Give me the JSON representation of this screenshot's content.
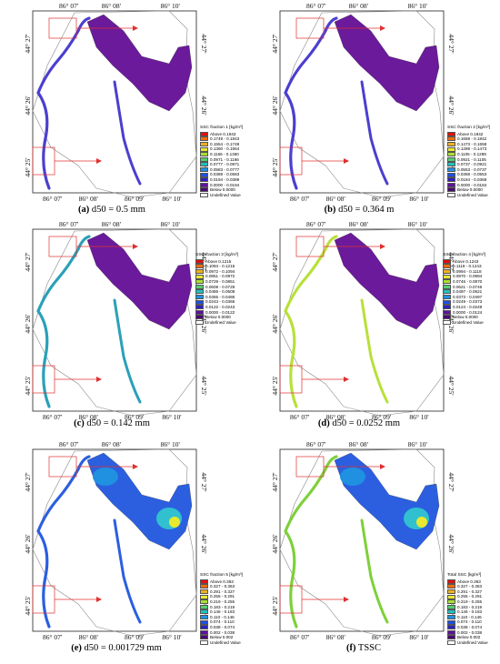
{
  "ticks": {
    "top": [
      "86° 07'",
      "86° 08'",
      "86° 10'"
    ],
    "bottom": [
      "86° 07'",
      "86° 08'",
      "86° 09'",
      "86° 10'"
    ],
    "left": [
      "44° 27'",
      "44° 26'",
      "44° 25'"
    ],
    "right": [
      "44° 27'",
      "44° 26'",
      "44° 25'"
    ]
  },
  "panels": [
    {
      "id": "a",
      "caption_label": "(a)",
      "caption_text": " d50 = 0.5 mm",
      "legend_title": "SSC fraction 1 [kg/m³]",
      "legend_rows": [
        "Above 0.1943",
        "0.1749 - 0.1943",
        "0.1554 - 0.1749",
        "0.1360 - 0.1554",
        "0.1166 - 0.1360",
        "0.0971 - 0.1166",
        "0.0777 - 0.0971",
        "0.0583 - 0.0777",
        "0.0389 - 0.0583",
        "0.0194 - 0.0389",
        "0.0000 - 0.0194",
        "Below 0.0000",
        "Undefined Value"
      ],
      "lake_color": "#6a1a9a",
      "river_color": "#4b3fcf"
    },
    {
      "id": "b",
      "caption_label": "(b)",
      "caption_text": " d50 = 0.364 m",
      "legend_title": "SSC fraction 2 [kg/m³]",
      "legend_rows": [
        "Above 0.1842",
        "0.1658 - 0.1842",
        "0.1473 - 0.1658",
        "0.1289 - 0.1473",
        "0.1105 - 0.1289",
        "0.0921 - 0.1105",
        "0.0737 - 0.0921",
        "0.0553 - 0.0737",
        "0.0368 - 0.0553",
        "0.0184 - 0.0368",
        "0.0000 - 0.0184",
        "Below 0.0000",
        "Undefined Value"
      ],
      "lake_color": "#6a1a9a",
      "river_color": "#4b3fcf"
    },
    {
      "id": "c",
      "caption_label": "(c)",
      "caption_text": " d50 = 0.142 mm",
      "legend_title": "SSC fraction 3 [kg/m³]",
      "legend_rows": [
        "Above 0.1215",
        "0.1094 - 0.1215",
        "0.0972 - 0.1094",
        "0.0851 - 0.0972",
        "0.0729 - 0.0851",
        "0.0608 - 0.0729",
        "0.0486 - 0.0608",
        "0.0365 - 0.0486",
        "0.0243 - 0.0365",
        "0.0122 - 0.0243",
        "0.0000 - 0.0122",
        "Below 0.0000",
        "Undefined Value"
      ],
      "lake_color": "#6a1a9a",
      "river_color": "#2aa0b8"
    },
    {
      "id": "d",
      "caption_label": "(d)",
      "caption_text": " d50 = 0.0252 mm",
      "legend_title": "SSC fraction 4 [kg/m³]",
      "legend_rows": [
        "Above 0.1243",
        "0.1118 - 0.1243",
        "0.0994 - 0.1118",
        "0.0870 - 0.0994",
        "0.0746 - 0.0870",
        "0.0621 - 0.0746",
        "0.0497 - 0.0621",
        "0.0373 - 0.0497",
        "0.0249 - 0.0373",
        "0.0124 - 0.0249",
        "0.0000 - 0.0124",
        "Below 0.0000",
        "Undefined Value"
      ],
      "lake_color": "#6a1a9a",
      "river_color": "#b8e03a"
    },
    {
      "id": "e",
      "caption_label": "(e)",
      "caption_text": " d50 = 0.001729 mm",
      "legend_title": "SSC fraction 5 [kg/m³]",
      "legend_rows": [
        "Above 0.363",
        "0.327 - 0.363",
        "0.291 - 0.327",
        "0.255 - 0.291",
        "0.219 - 0.255",
        "0.183 - 0.219",
        "0.146 - 0.183",
        "0.110 - 0.146",
        "0.074 - 0.110",
        "0.038 - 0.074",
        "0.002 - 0.038",
        "Below 0.002",
        "Undefined Value"
      ],
      "lake_color": "#2b5fe0",
      "river_color": "#2b5fe0"
    },
    {
      "id": "f",
      "caption_label": "(f)",
      "caption_text": " TSSC",
      "legend_title": "Total SSC [kg/m³]",
      "legend_rows": [
        "Above 0.363",
        "0.327 - 0.363",
        "0.291 - 0.327",
        "0.255 - 0.291",
        "0.219 - 0.255",
        "0.183 - 0.219",
        "0.146 - 0.183",
        "0.110 - 0.146",
        "0.074 - 0.110",
        "0.038 - 0.074",
        "0.002 - 0.038",
        "Below 0.002",
        "Undefined Value"
      ],
      "lake_color": "#2b5fe0",
      "river_color": "#7ed03a"
    }
  ],
  "legend_colors": [
    "#e01010",
    "#f06a10",
    "#f0b020",
    "#e8e830",
    "#a8e030",
    "#50d070",
    "#20c0c0",
    "#2090e0",
    "#2050e0",
    "#3020c0",
    "#6010a0",
    "#4a0870",
    "#ffffff"
  ]
}
